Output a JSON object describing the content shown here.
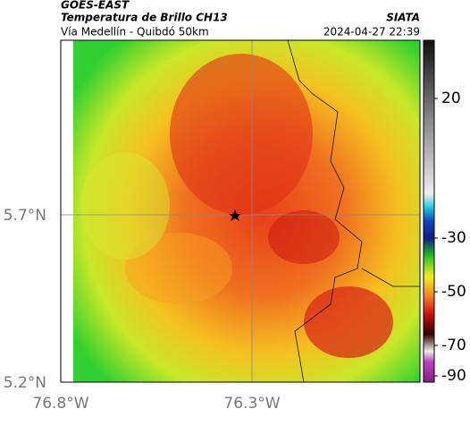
{
  "header": {
    "source": "GOES-EAST",
    "title": "Temperatura de Brillo CH13",
    "subtitle": "Vía Medellín - Quibdó 50km",
    "agency": "SIATA",
    "timestamp": "2024-04-27 22:39"
  },
  "map": {
    "lon_labels": [
      "76.8°W",
      "76.3°W"
    ],
    "lat_labels": [
      "5.7°N",
      "5.2°N"
    ]
  },
  "colorbar": {
    "labels": [
      20,
      -30,
      -50,
      -70,
      -90
    ]
  }
}
